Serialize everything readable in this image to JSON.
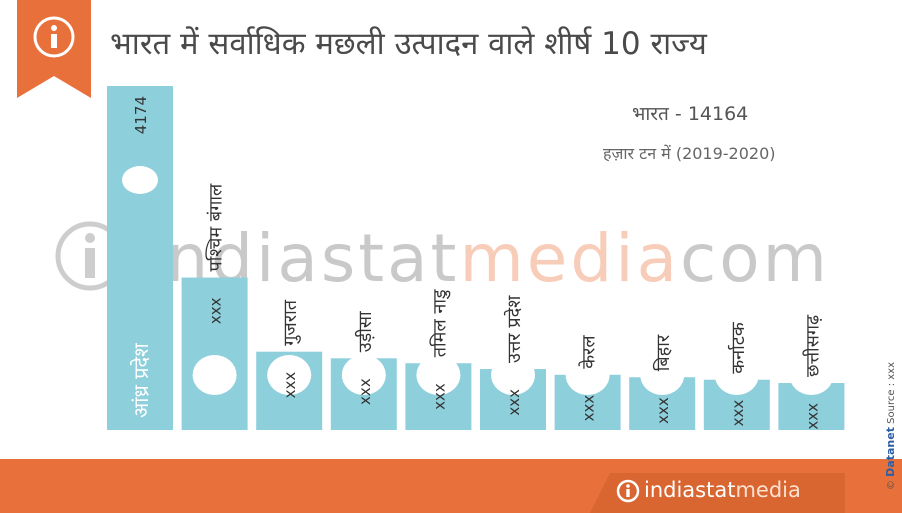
{
  "title": "भारत में सर्वाधिक मछली उत्पादन वाले शीर्ष 10 राज्य",
  "total_text": "भारत - 14164",
  "unit_text": "हज़ार टन में (2019-2020)",
  "watermark": {
    "part1": "indiastat",
    "part2": "media",
    "part3": "com"
  },
  "footer": {
    "logo_part1": "indiastat",
    "logo_part2": "media"
  },
  "credit": {
    "copyright": "©",
    "brand": "Datanet",
    "source": "Source : xxx"
  },
  "colors": {
    "bar": "#8ecfdc",
    "accent": "#e8703a",
    "text": "#4a4a4a"
  },
  "chart_data": {
    "type": "bar",
    "title": "भारत में सर्वाधिक मछली उत्पादन वाले शीर्ष 10 राज्य",
    "categories": [
      "आंध्र प्रदेश",
      "पश्चिम बंगाल",
      "गुजरात",
      "उड़ीसा",
      "तमिल नाडु",
      "उत्तर प्रदेश",
      "केरल",
      "बिहार",
      "कर्नाटक",
      "छत्तीसगढ़"
    ],
    "values": [
      4174,
      1850,
      950,
      870,
      810,
      740,
      670,
      640,
      610,
      570
    ],
    "value_labels": [
      "4174",
      "xxx",
      "xxx",
      "xxx",
      "xxx",
      "xxx",
      "xxx",
      "xxx",
      "xxx",
      "xxx"
    ],
    "ylim": [
      0,
      4174
    ],
    "xlabel": "",
    "ylabel": "",
    "grid": false,
    "legend": "none"
  }
}
